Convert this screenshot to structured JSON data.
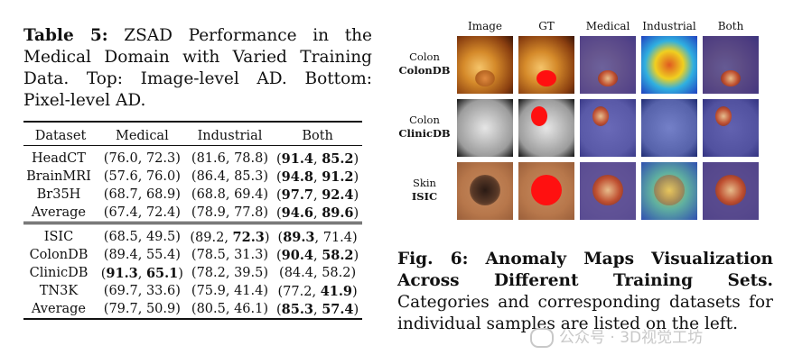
{
  "table": {
    "caption_label": "Table 5:",
    "caption_text": "ZSAD Performance in the Medical Domain with Varied Training Data. Top: Image-level AD. Bottom: Pixel-level AD.",
    "headers": [
      "Dataset",
      "Medical",
      "Industrial",
      "Both"
    ],
    "top_rows": [
      {
        "dataset": "HeadCT",
        "medical": "(76.0, 72.3)",
        "industrial": "(81.6, 78.8)",
        "both": [
          [
            "(",
            false
          ],
          [
            "91.4",
            true
          ],
          [
            ", ",
            false
          ],
          [
            "85.2",
            true
          ],
          [
            ")",
            false
          ]
        ]
      },
      {
        "dataset": "BrainMRI",
        "medical": "(57.6, 76.0)",
        "industrial": "(86.4, 85.3)",
        "both": [
          [
            "(",
            false
          ],
          [
            "94.8",
            true
          ],
          [
            ", ",
            false
          ],
          [
            "91.2",
            true
          ],
          [
            ")",
            false
          ]
        ]
      },
      {
        "dataset": "Br35H",
        "medical": "(68.7, 68.9)",
        "industrial": "(68.8, 69.4)",
        "both": [
          [
            "(",
            false
          ],
          [
            "97.7",
            true
          ],
          [
            ", ",
            false
          ],
          [
            "92.4",
            true
          ],
          [
            ")",
            false
          ]
        ]
      },
      {
        "dataset": "Average",
        "medical": "(67.4, 72.4)",
        "industrial": "(78.9, 77.8)",
        "both": [
          [
            "(",
            false
          ],
          [
            "94.6",
            true
          ],
          [
            ", ",
            false
          ],
          [
            "89.6",
            true
          ],
          [
            ")",
            false
          ]
        ]
      }
    ],
    "bottom_rows": [
      {
        "dataset": "ISIC",
        "medical": [
          [
            "(68.5, 49.5)",
            false
          ]
        ],
        "industrial": [
          [
            "(89.2, ",
            false
          ],
          [
            "72.3",
            true
          ],
          [
            ")",
            false
          ]
        ],
        "both": [
          [
            "(",
            false
          ],
          [
            "89.3",
            true
          ],
          [
            ", 71.4)",
            false
          ]
        ]
      },
      {
        "dataset": "ColonDB",
        "medical": [
          [
            "(89.4, 55.4)",
            false
          ]
        ],
        "industrial": [
          [
            "(78.5, 31.3)",
            false
          ]
        ],
        "both": [
          [
            "(",
            false
          ],
          [
            "90.4",
            true
          ],
          [
            ", ",
            false
          ],
          [
            "58.2",
            true
          ],
          [
            ")",
            false
          ]
        ]
      },
      {
        "dataset": "ClinicDB",
        "medical": [
          [
            "(",
            false
          ],
          [
            "91.3",
            true
          ],
          [
            ", ",
            false
          ],
          [
            "65.1",
            true
          ],
          [
            ")",
            false
          ]
        ],
        "industrial": [
          [
            "(78.2, 39.5)",
            false
          ]
        ],
        "both": [
          [
            "(84.4, 58.2)",
            false
          ]
        ]
      },
      {
        "dataset": "TN3K",
        "medical": [
          [
            "(69.7, 33.6)",
            false
          ]
        ],
        "industrial": [
          [
            "(75.9, 41.4)",
            false
          ]
        ],
        "both": [
          [
            "(77.2, ",
            false
          ],
          [
            "41.9",
            true
          ],
          [
            ")",
            false
          ]
        ]
      },
      {
        "dataset": "Average",
        "medical": [
          [
            "(79.7, 50.9)",
            false
          ]
        ],
        "industrial": [
          [
            "(80.5, 46.1)",
            false
          ]
        ],
        "both": [
          [
            "(",
            false
          ],
          [
            "85.3",
            true
          ],
          [
            ", ",
            false
          ],
          [
            "57.4",
            true
          ],
          [
            ")",
            false
          ]
        ]
      }
    ]
  },
  "figure": {
    "column_headers": [
      "Image",
      "GT",
      "Medical",
      "Industrial",
      "Both"
    ],
    "rows": [
      {
        "category": "Colon",
        "dataset": "ColonDB"
      },
      {
        "category": "Colon",
        "dataset": "ClinicDB"
      },
      {
        "category": "Skin",
        "dataset": "ISIC"
      }
    ],
    "caption_label": "Fig. 6: Anomaly Maps Visualization Across Different Training Sets.",
    "caption_text": "Categories and corresponding datasets for individual samples are listed on the left."
  },
  "watermark": {
    "text": "公众号 · 3D视觉工坊"
  }
}
